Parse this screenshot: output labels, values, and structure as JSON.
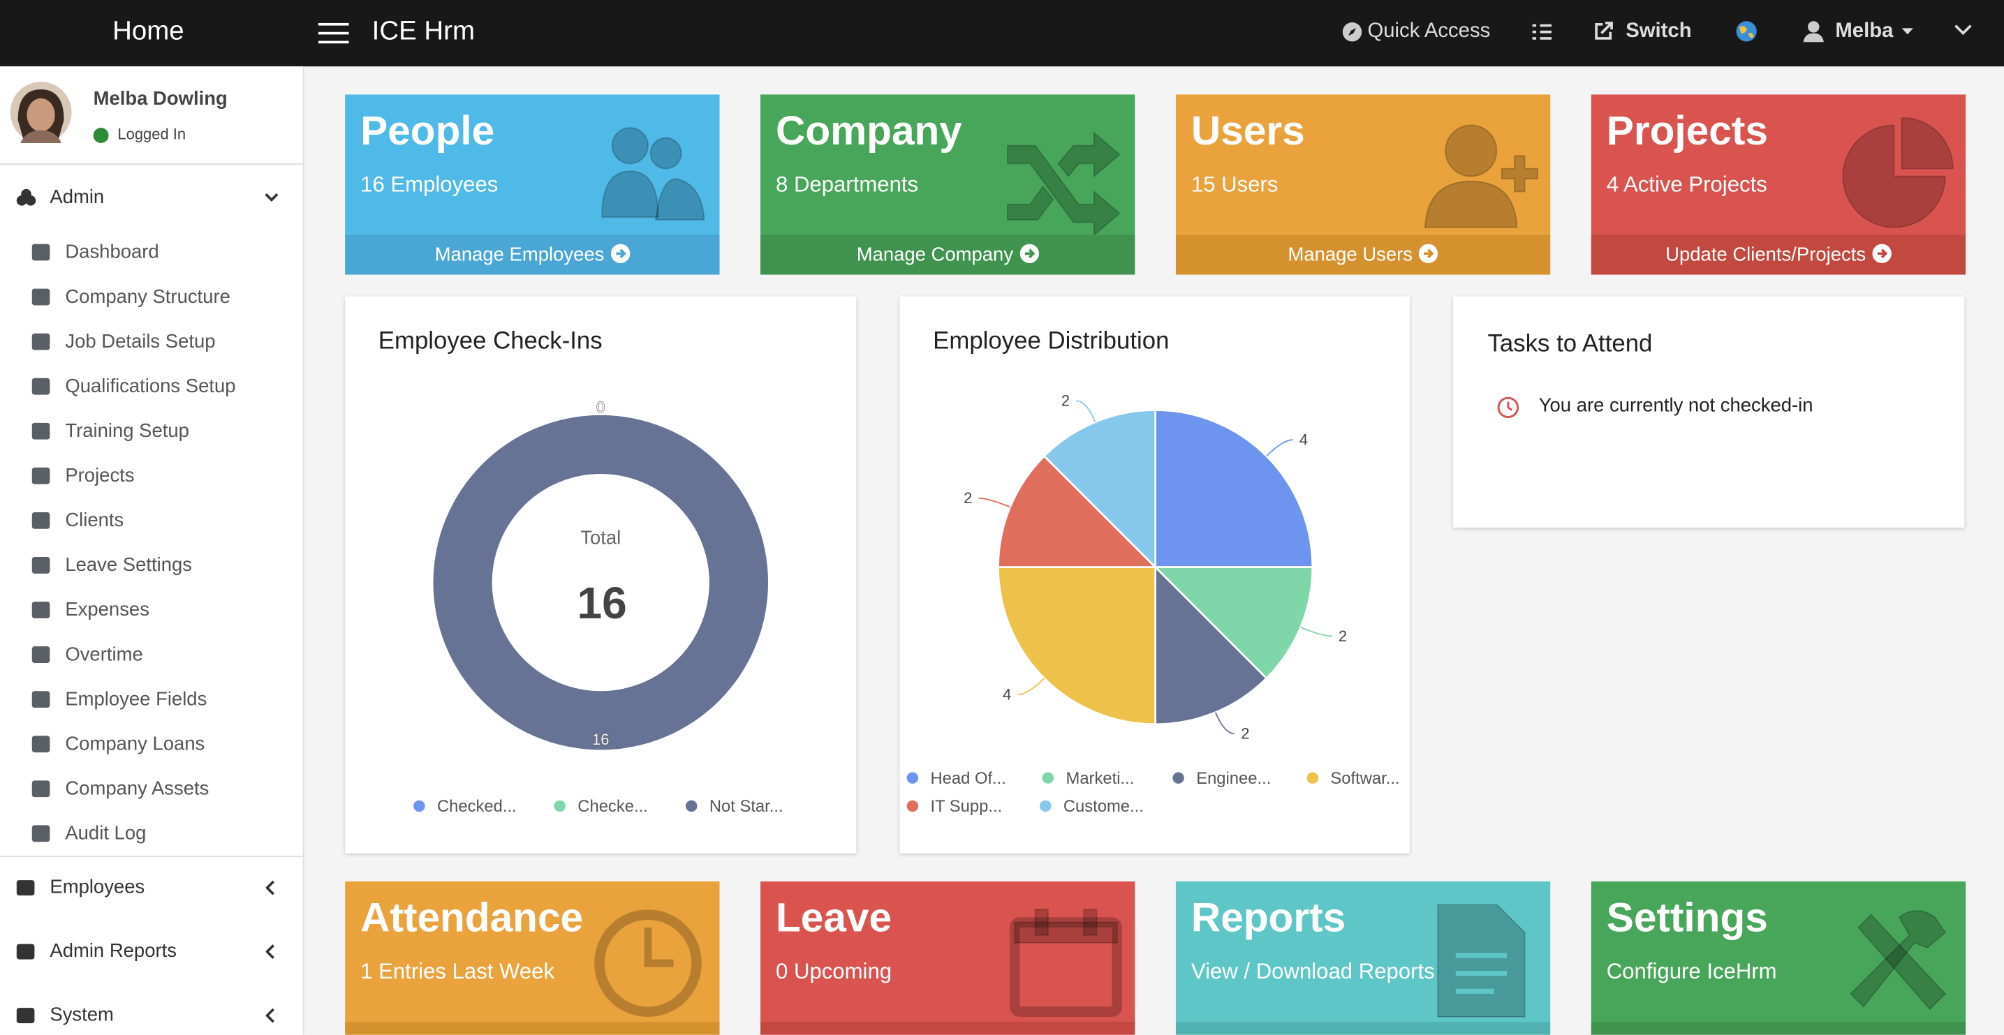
{
  "topbar": {
    "home": "Home",
    "app_name": "ICE Hrm",
    "quick_access": "Quick Access",
    "switch": "Switch",
    "user": "Melba"
  },
  "sidebar": {
    "user_name": "Melba Dowling",
    "status": "Logged In",
    "admin": {
      "label": "Admin",
      "items": [
        "Dashboard",
        "Company Structure",
        "Job Details Setup",
        "Qualifications Setup",
        "Training Setup",
        "Projects",
        "Clients",
        "Leave Settings",
        "Expenses",
        "Overtime",
        "Employee Fields",
        "Company Loans",
        "Company Assets",
        "Audit Log"
      ]
    },
    "sections": [
      "Employees",
      "Admin Reports",
      "System"
    ]
  },
  "cards": [
    {
      "title": "People",
      "subtitle": "16 Employees",
      "link": "Manage Employees"
    },
    {
      "title": "Company",
      "subtitle": "8 Departments",
      "link": "Manage Company"
    },
    {
      "title": "Users",
      "subtitle": "15 Users",
      "link": "Manage Users"
    },
    {
      "title": "Projects",
      "subtitle": "4 Active Projects",
      "link": "Update Clients/Projects"
    }
  ],
  "bottom_cards": [
    {
      "title": "Attendance",
      "subtitle": "1 Entries Last Week"
    },
    {
      "title": "Leave",
      "subtitle": "0 Upcoming"
    },
    {
      "title": "Reports",
      "subtitle": "View / Download Reports"
    },
    {
      "title": "Settings",
      "subtitle": "Configure IceHrm"
    }
  ],
  "check_ins": {
    "type": "donut",
    "title": "Employee Check-Ins",
    "categories": [
      "Checked...",
      "Checke...",
      "Not Star..."
    ],
    "values": [
      0,
      0,
      16
    ],
    "colors": [
      "#6d94ef",
      "#7fd6a8",
      "#667394"
    ],
    "center_label": "Total",
    "center_value": 16
  },
  "distribution": {
    "type": "pie",
    "title": "Employee Distribution",
    "categories": [
      "Head Of...",
      "Marketi...",
      "Enginee...",
      "Softwar...",
      "IT Supp...",
      "Custome..."
    ],
    "values": [
      4,
      2,
      2,
      4,
      2,
      2
    ],
    "colors": [
      "#6d94ef",
      "#7fd6a8",
      "#667394",
      "#edc14a",
      "#df6e5d",
      "#86c8ec"
    ]
  },
  "tasks": {
    "title": "Tasks to Attend",
    "items": [
      "You are currently not checked-in"
    ]
  }
}
